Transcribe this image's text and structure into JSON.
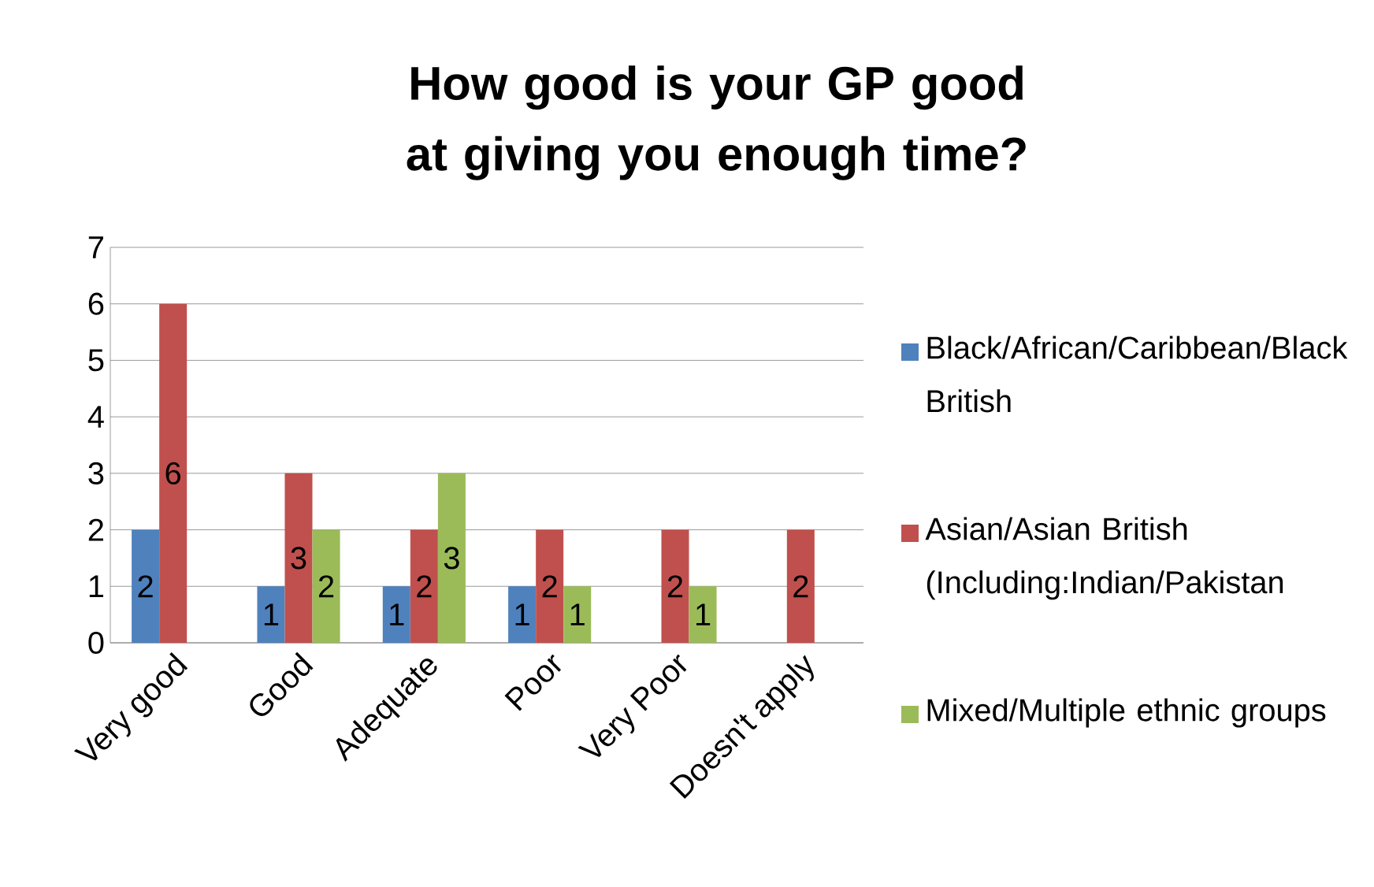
{
  "chart_data": {
    "type": "bar",
    "title": "How good is your GP good at giving you enough time?",
    "categories": [
      "Very good",
      "Good",
      "Adequate",
      "Poor",
      "Very Poor",
      "Doesn't apply"
    ],
    "series": [
      {
        "name": "Black/African/Caribbean/Black British",
        "color": "#4f81bd",
        "values": [
          2,
          1,
          1,
          1,
          null,
          null
        ]
      },
      {
        "name": "Asian/Asian British (Including:Indian/Pakistan",
        "color": "#c0504d",
        "values": [
          6,
          3,
          2,
          2,
          2,
          2
        ]
      },
      {
        "name": "Mixed/Multiple ethnic groups",
        "color": "#9bbb59",
        "values": [
          null,
          2,
          3,
          1,
          1,
          null
        ]
      }
    ],
    "ylim": [
      0,
      7
    ],
    "yticks": [
      0,
      1,
      2,
      3,
      4,
      5,
      6,
      7
    ],
    "grid": "y",
    "legend": "right",
    "data_labels": true
  }
}
